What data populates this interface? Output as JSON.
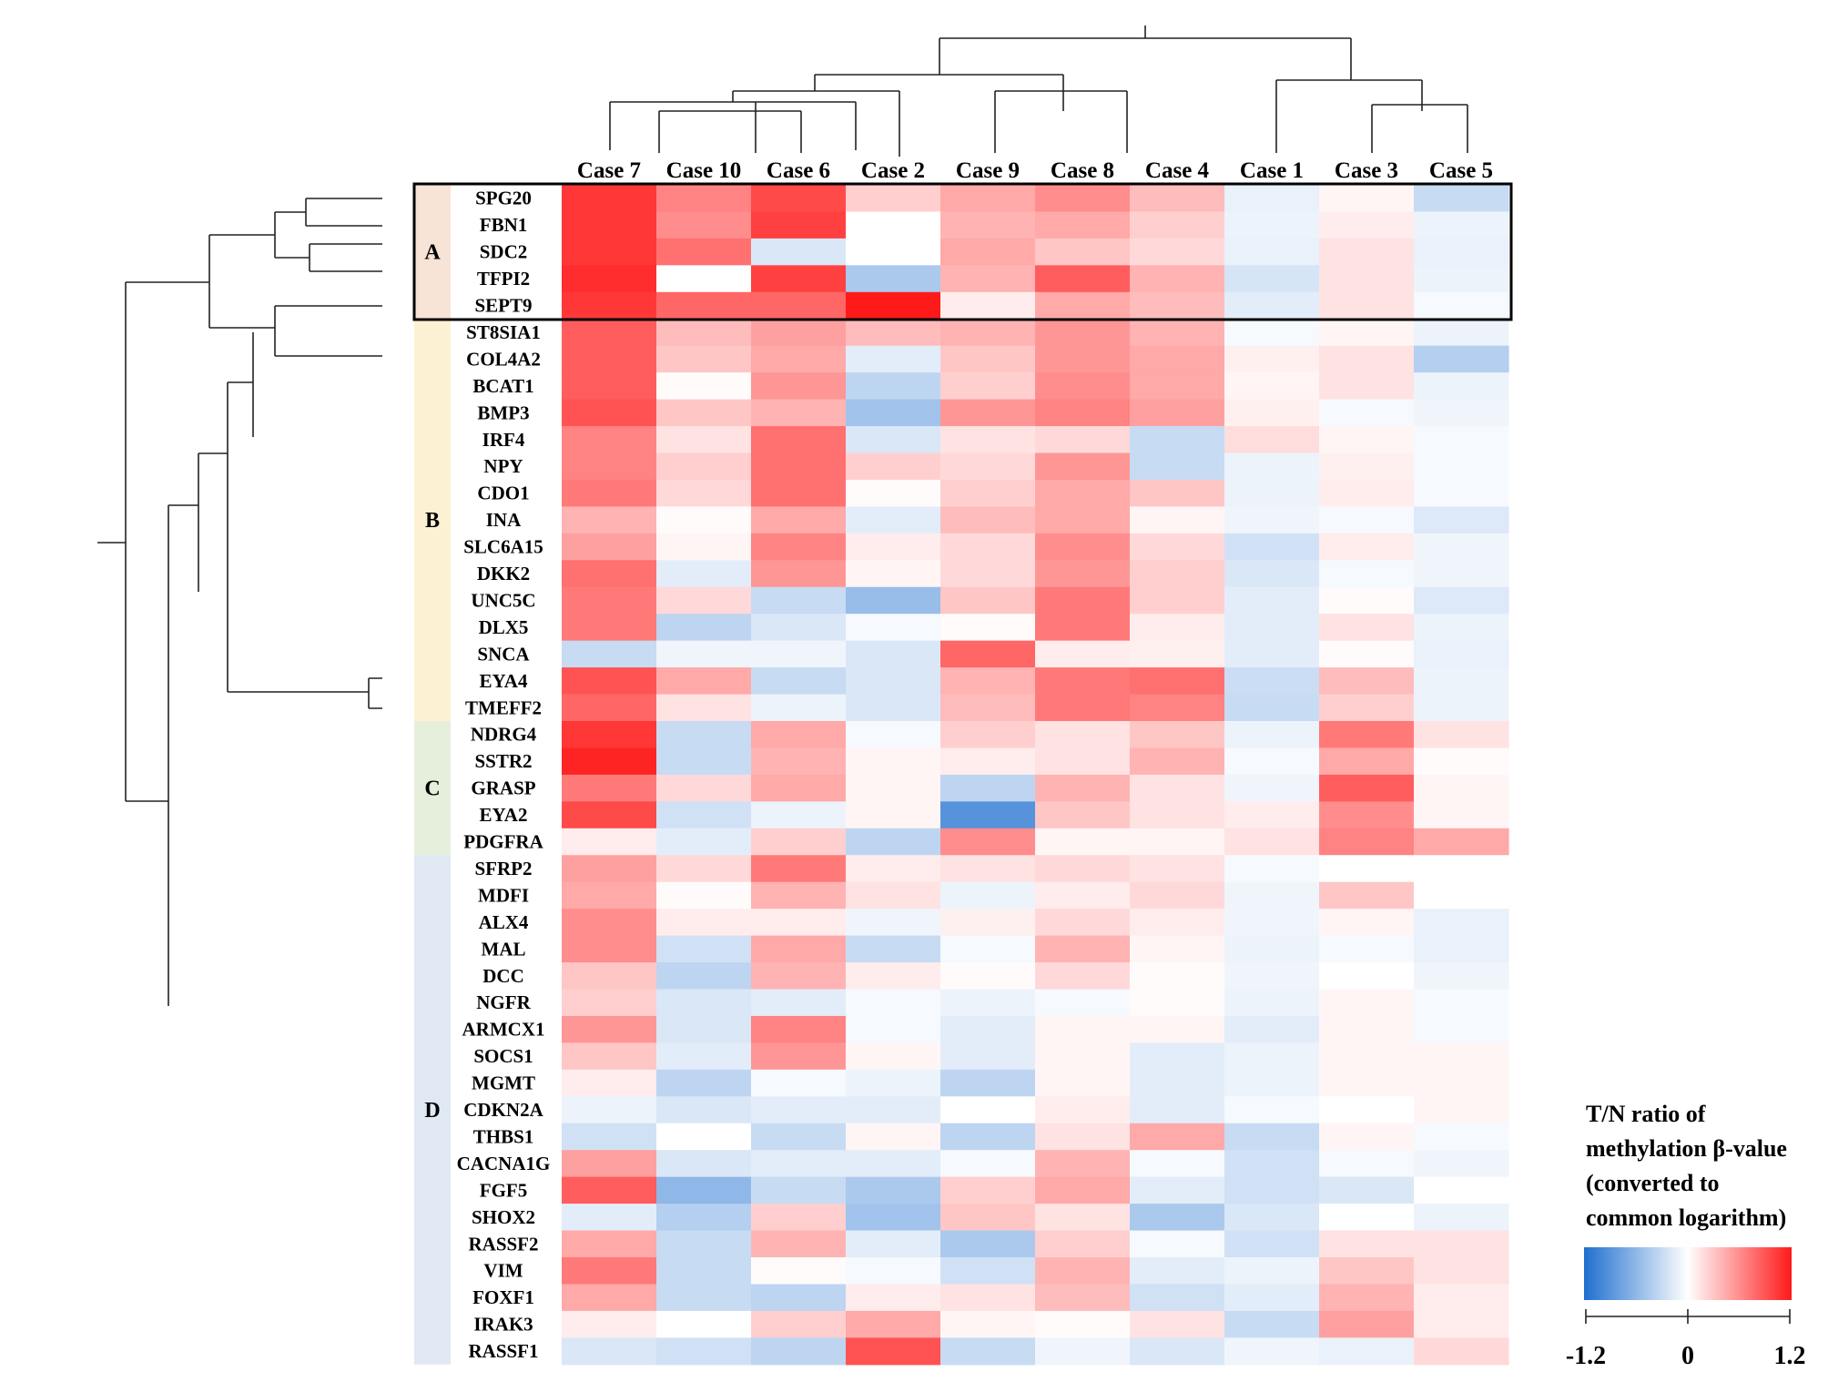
{
  "chart_data": {
    "type": "heatmap",
    "title": "",
    "columns": [
      "Case 7",
      "Case 10",
      "Case 6",
      "Case 2",
      "Case 9",
      "Case 8",
      "Case 4",
      "Case 1",
      "Case 3",
      "Case 5"
    ],
    "rows": [
      "SPG20",
      "FBN1",
      "SDC2",
      "TFPI2",
      "SEPT9",
      "ST8SIA1",
      "COL4A2",
      "BCAT1",
      "BMP3",
      "IRF4",
      "NPY",
      "CDO1",
      "INA",
      "SLC6A15",
      "DKK2",
      "UNC5C",
      "DLX5",
      "SNCA",
      "EYA4",
      "TMEFF2",
      "NDRG4",
      "SSTR2",
      "GRASP",
      "EYA2",
      "PDGFRA",
      "SFRP2",
      "MDFI",
      "ALX4",
      "MAL",
      "DCC",
      "NGFR",
      "ARMCX1",
      "SOCS1",
      "MGMT",
      "CDKN2A",
      "THBS1",
      "CACNA1G",
      "FGF5",
      "SHOX2",
      "RASSF2",
      "VIM",
      "FOXF1",
      "IRAK3",
      "RASSF1"
    ],
    "values": [
      [
        1.05,
        0.65,
        0.95,
        0.25,
        0.45,
        0.6,
        0.35,
        -0.12,
        0.05,
        -0.3
      ],
      [
        1.05,
        0.6,
        1.0,
        0.0,
        0.4,
        0.45,
        0.25,
        -0.1,
        0.1,
        -0.1
      ],
      [
        1.05,
        0.75,
        -0.2,
        0.0,
        0.45,
        0.3,
        0.2,
        -0.12,
        0.15,
        -0.12
      ],
      [
        1.1,
        0.0,
        1.0,
        -0.45,
        0.4,
        0.85,
        0.4,
        -0.22,
        0.15,
        -0.1
      ],
      [
        1.05,
        0.8,
        0.8,
        1.2,
        0.1,
        0.45,
        0.35,
        -0.15,
        0.15,
        -0.05
      ],
      [
        0.85,
        0.35,
        0.5,
        0.35,
        0.4,
        0.55,
        0.4,
        -0.05,
        0.05,
        -0.1
      ],
      [
        0.85,
        0.3,
        0.45,
        -0.15,
        0.3,
        0.55,
        0.45,
        0.08,
        0.15,
        -0.4
      ],
      [
        0.85,
        0.02,
        0.55,
        -0.35,
        0.25,
        0.6,
        0.45,
        0.05,
        0.15,
        -0.1
      ],
      [
        0.9,
        0.3,
        0.4,
        -0.5,
        0.55,
        0.65,
        0.5,
        0.08,
        -0.05,
        -0.08
      ],
      [
        0.65,
        0.15,
        0.75,
        -0.2,
        0.15,
        0.2,
        -0.3,
        0.18,
        0.05,
        -0.05
      ],
      [
        0.65,
        0.25,
        0.75,
        0.25,
        0.2,
        0.55,
        -0.3,
        -0.1,
        0.08,
        -0.05
      ],
      [
        0.7,
        0.2,
        0.75,
        0.02,
        0.25,
        0.45,
        0.3,
        -0.1,
        0.1,
        -0.05
      ],
      [
        0.4,
        0.02,
        0.45,
        -0.15,
        0.35,
        0.45,
        0.05,
        -0.08,
        -0.05,
        -0.18
      ],
      [
        0.5,
        0.05,
        0.65,
        0.1,
        0.2,
        0.6,
        0.2,
        -0.25,
        0.1,
        -0.08
      ],
      [
        0.75,
        -0.15,
        0.55,
        0.05,
        0.2,
        0.55,
        0.25,
        -0.2,
        -0.05,
        -0.08
      ],
      [
        0.7,
        0.2,
        -0.3,
        -0.55,
        0.3,
        0.7,
        0.25,
        -0.15,
        0.02,
        -0.18
      ],
      [
        0.7,
        -0.35,
        -0.2,
        -0.05,
        0.02,
        0.7,
        0.1,
        -0.15,
        0.15,
        -0.1
      ],
      [
        -0.3,
        -0.08,
        -0.08,
        -0.2,
        0.8,
        0.1,
        0.08,
        -0.15,
        0.02,
        -0.12
      ],
      [
        0.9,
        0.45,
        -0.3,
        -0.2,
        0.4,
        0.7,
        0.75,
        -0.28,
        0.35,
        -0.1
      ],
      [
        0.8,
        0.15,
        -0.1,
        -0.2,
        0.35,
        0.7,
        0.65,
        -0.3,
        0.25,
        -0.1
      ],
      [
        1.05,
        -0.3,
        0.45,
        -0.05,
        0.25,
        0.15,
        0.3,
        -0.1,
        0.7,
        0.15
      ],
      [
        1.15,
        -0.3,
        0.4,
        0.05,
        0.1,
        0.15,
        0.4,
        -0.05,
        0.45,
        0.02
      ],
      [
        0.7,
        0.2,
        0.45,
        0.05,
        -0.35,
        0.4,
        0.15,
        -0.08,
        0.85,
        0.05
      ],
      [
        0.95,
        -0.25,
        -0.1,
        0.05,
        -0.9,
        0.3,
        0.15,
        0.1,
        0.6,
        0.05
      ],
      [
        0.1,
        -0.15,
        0.25,
        -0.35,
        0.6,
        0.05,
        0.05,
        0.15,
        0.65,
        0.45
      ],
      [
        0.5,
        0.2,
        0.7,
        0.1,
        0.15,
        0.2,
        0.15,
        -0.05,
        0.0,
        0.0
      ],
      [
        0.45,
        0.02,
        0.4,
        0.15,
        -0.1,
        0.1,
        0.2,
        -0.08,
        0.3,
        0.0
      ],
      [
        0.6,
        0.1,
        0.1,
        -0.08,
        0.08,
        0.2,
        0.1,
        -0.08,
        0.05,
        -0.12
      ],
      [
        0.6,
        -0.25,
        0.45,
        -0.3,
        -0.05,
        0.4,
        0.05,
        -0.1,
        -0.05,
        -0.12
      ],
      [
        0.3,
        -0.35,
        0.4,
        0.1,
        0.02,
        0.2,
        0.02,
        -0.08,
        0.0,
        -0.08
      ],
      [
        0.25,
        -0.2,
        -0.15,
        -0.05,
        -0.1,
        -0.05,
        0.02,
        -0.1,
        0.05,
        -0.05
      ],
      [
        0.55,
        -0.2,
        0.65,
        -0.05,
        -0.15,
        0.05,
        0.05,
        -0.15,
        0.05,
        -0.05
      ],
      [
        0.3,
        -0.15,
        0.55,
        0.05,
        -0.15,
        0.05,
        -0.15,
        -0.1,
        0.05,
        0.05
      ],
      [
        0.1,
        -0.35,
        -0.05,
        -0.1,
        -0.35,
        0.05,
        -0.15,
        -0.1,
        0.05,
        0.05
      ],
      [
        -0.1,
        -0.2,
        -0.15,
        -0.15,
        0.0,
        0.1,
        -0.15,
        -0.05,
        0.0,
        0.05
      ],
      [
        -0.25,
        0.0,
        -0.3,
        0.05,
        -0.35,
        0.15,
        0.45,
        -0.3,
        0.05,
        -0.05
      ],
      [
        0.5,
        -0.2,
        -0.15,
        -0.15,
        -0.05,
        0.4,
        -0.05,
        -0.25,
        -0.05,
        -0.08
      ],
      [
        0.85,
        -0.6,
        -0.3,
        -0.45,
        0.25,
        0.45,
        -0.15,
        -0.25,
        -0.2,
        0.0
      ],
      [
        -0.15,
        -0.4,
        0.25,
        -0.5,
        0.3,
        0.15,
        -0.45,
        -0.2,
        0.0,
        -0.1
      ],
      [
        0.45,
        -0.3,
        0.4,
        -0.15,
        -0.45,
        0.25,
        -0.05,
        -0.25,
        0.15,
        0.15
      ],
      [
        0.7,
        -0.3,
        0.02,
        -0.05,
        -0.25,
        0.4,
        -0.15,
        -0.1,
        0.3,
        0.15
      ],
      [
        0.45,
        -0.3,
        -0.35,
        0.1,
        0.15,
        0.35,
        -0.25,
        -0.15,
        0.4,
        0.1
      ],
      [
        0.1,
        0.0,
        0.25,
        0.45,
        0.05,
        0.02,
        0.15,
        -0.3,
        0.5,
        0.1
      ],
      [
        -0.2,
        -0.25,
        -0.35,
        0.9,
        -0.3,
        -0.08,
        -0.2,
        -0.08,
        -0.12,
        0.2
      ]
    ],
    "groups": [
      {
        "label": "A",
        "start": 0,
        "end": 4,
        "color": "#f8e3d7"
      },
      {
        "label": "B",
        "start": 5,
        "end": 19,
        "color": "#fdf1d3"
      },
      {
        "label": "C",
        "start": 20,
        "end": 24,
        "color": "#e5efdc"
      },
      {
        "label": "D",
        "start": 25,
        "end": 43,
        "color": "#dfe8f3"
      }
    ],
    "color_scale": {
      "min": -1.2,
      "max": 1.2,
      "low_color": "#1f6fcf",
      "mid_color": "#ffffff",
      "high_color": "#ff1a1a"
    },
    "legend": {
      "title_lines": [
        "T/N ratio of",
        "methylation β-value",
        "(converted to",
        "common logarithm)"
      ],
      "ticks": [
        "-1.2",
        "0",
        "1.2"
      ]
    }
  }
}
